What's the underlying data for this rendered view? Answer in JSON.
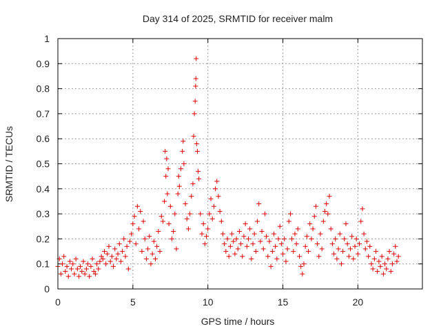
{
  "chart_data": {
    "type": "scatter",
    "title": "Day 314 of 2025, SRMTID for receiver malm",
    "xlabel": "GPS time / hours",
    "ylabel": "SRMTID / TECUs",
    "xlim": [
      0,
      24.3
    ],
    "ylim": [
      0,
      1
    ],
    "xticks": [
      0,
      5,
      10,
      15,
      20
    ],
    "xtick_labels": [
      "0",
      "5",
      "10",
      "15",
      "20"
    ],
    "yticks": [
      0,
      0.1,
      0.2,
      0.3,
      0.4,
      0.5,
      0.6,
      0.7,
      0.8,
      0.9,
      1
    ],
    "ytick_labels": [
      "0",
      "0.1",
      "0.2",
      "0.3",
      "0.4",
      "0.5",
      "0.6",
      "0.7",
      "0.8",
      "0.9",
      "1"
    ],
    "grid": true,
    "marker": "+",
    "series_color": "#e00000",
    "series": [
      {
        "name": "SRMTID",
        "points": [
          [
            0.0,
            0.09
          ],
          [
            0.1,
            0.12
          ],
          [
            0.2,
            0.06
          ],
          [
            0.3,
            0.1
          ],
          [
            0.4,
            0.13
          ],
          [
            0.5,
            0.07
          ],
          [
            0.6,
            0.09
          ],
          [
            0.7,
            0.05
          ],
          [
            0.8,
            0.11
          ],
          [
            0.9,
            0.08
          ],
          [
            1.0,
            0.1
          ],
          [
            1.1,
            0.06
          ],
          [
            1.2,
            0.12
          ],
          [
            1.3,
            0.08
          ],
          [
            1.4,
            0.05
          ],
          [
            1.5,
            0.09
          ],
          [
            1.6,
            0.07
          ],
          [
            1.7,
            0.11
          ],
          [
            1.8,
            0.06
          ],
          [
            1.9,
            0.08
          ],
          [
            2.0,
            0.1
          ],
          [
            2.1,
            0.05
          ],
          [
            2.2,
            0.09
          ],
          [
            2.3,
            0.12
          ],
          [
            2.4,
            0.07
          ],
          [
            2.5,
            0.06
          ],
          [
            2.6,
            0.1
          ],
          [
            2.7,
            0.08
          ],
          [
            2.8,
            0.11
          ],
          [
            2.9,
            0.13
          ],
          [
            3.0,
            0.12
          ],
          [
            3.1,
            0.15
          ],
          [
            3.2,
            0.1
          ],
          [
            3.3,
            0.14
          ],
          [
            3.4,
            0.17
          ],
          [
            3.5,
            0.11
          ],
          [
            3.6,
            0.13
          ],
          [
            3.7,
            0.09
          ],
          [
            3.8,
            0.16
          ],
          [
            3.9,
            0.12
          ],
          [
            4.0,
            0.14
          ],
          [
            4.1,
            0.18
          ],
          [
            4.2,
            0.11
          ],
          [
            4.3,
            0.15
          ],
          [
            4.4,
            0.2
          ],
          [
            4.5,
            0.13
          ],
          [
            4.6,
            0.17
          ],
          [
            4.7,
            0.08
          ],
          [
            4.8,
            0.19
          ],
          [
            4.9,
            0.22
          ],
          [
            5.0,
            0.26
          ],
          [
            5.1,
            0.29
          ],
          [
            5.2,
            0.18
          ],
          [
            5.3,
            0.33
          ],
          [
            5.4,
            0.24
          ],
          [
            5.5,
            0.31
          ],
          [
            5.6,
            0.15
          ],
          [
            5.7,
            0.27
          ],
          [
            5.8,
            0.2
          ],
          [
            5.9,
            0.12
          ],
          [
            6.0,
            0.16
          ],
          [
            6.1,
            0.21
          ],
          [
            6.2,
            0.1
          ],
          [
            6.3,
            0.14
          ],
          [
            6.4,
            0.19
          ],
          [
            6.5,
            0.12
          ],
          [
            6.6,
            0.17
          ],
          [
            6.7,
            0.23
          ],
          [
            6.8,
            0.15
          ],
          [
            6.9,
            0.29
          ],
          [
            7.0,
            0.27
          ],
          [
            7.1,
            0.35
          ],
          [
            7.15,
            0.55
          ],
          [
            7.2,
            0.45
          ],
          [
            7.25,
            0.52
          ],
          [
            7.3,
            0.38
          ],
          [
            7.35,
            0.48
          ],
          [
            7.4,
            0.26
          ],
          [
            7.5,
            0.33
          ],
          [
            7.6,
            0.2
          ],
          [
            7.7,
            0.23
          ],
          [
            7.8,
            0.3
          ],
          [
            7.9,
            0.16
          ],
          [
            8.0,
            0.38
          ],
          [
            8.05,
            0.45
          ],
          [
            8.1,
            0.41
          ],
          [
            8.2,
            0.48
          ],
          [
            8.3,
            0.55
          ],
          [
            8.35,
            0.59
          ],
          [
            8.4,
            0.5
          ],
          [
            8.5,
            0.34
          ],
          [
            8.6,
            0.28
          ],
          [
            8.7,
            0.24
          ],
          [
            8.8,
            0.3
          ],
          [
            8.9,
            0.37
          ],
          [
            9.0,
            0.42
          ],
          [
            9.05,
            0.61
          ],
          [
            9.1,
            0.7
          ],
          [
            9.15,
            0.75
          ],
          [
            9.18,
            0.81
          ],
          [
            9.2,
            0.84
          ],
          [
            9.22,
            0.92
          ],
          [
            9.25,
            0.58
          ],
          [
            9.3,
            0.55
          ],
          [
            9.35,
            0.47
          ],
          [
            9.4,
            0.44
          ],
          [
            9.5,
            0.3
          ],
          [
            9.6,
            0.22
          ],
          [
            9.7,
            0.26
          ],
          [
            9.8,
            0.18
          ],
          [
            9.9,
            0.21
          ],
          [
            10.0,
            0.24
          ],
          [
            10.1,
            0.3
          ],
          [
            10.2,
            0.36
          ],
          [
            10.3,
            0.28
          ],
          [
            10.4,
            0.33
          ],
          [
            10.5,
            0.4
          ],
          [
            10.6,
            0.43
          ],
          [
            10.7,
            0.37
          ],
          [
            10.8,
            0.31
          ],
          [
            10.9,
            0.27
          ],
          [
            11.0,
            0.22
          ],
          [
            11.1,
            0.18
          ],
          [
            11.2,
            0.15
          ],
          [
            11.3,
            0.2
          ],
          [
            11.4,
            0.13
          ],
          [
            11.5,
            0.17
          ],
          [
            11.6,
            0.22
          ],
          [
            11.7,
            0.19
          ],
          [
            11.8,
            0.14
          ],
          [
            11.9,
            0.2
          ],
          [
            12.0,
            0.16
          ],
          [
            12.1,
            0.23
          ],
          [
            12.2,
            0.18
          ],
          [
            12.3,
            0.13
          ],
          [
            12.4,
            0.21
          ],
          [
            12.5,
            0.26
          ],
          [
            12.6,
            0.17
          ],
          [
            12.7,
            0.2
          ],
          [
            12.8,
            0.24
          ],
          [
            12.9,
            0.12
          ],
          [
            13.0,
            0.18
          ],
          [
            13.1,
            0.22
          ],
          [
            13.2,
            0.15
          ],
          [
            13.3,
            0.27
          ],
          [
            13.4,
            0.34
          ],
          [
            13.5,
            0.19
          ],
          [
            13.6,
            0.23
          ],
          [
            13.7,
            0.16
          ],
          [
            13.8,
            0.3
          ],
          [
            13.9,
            0.21
          ],
          [
            14.0,
            0.13
          ],
          [
            14.1,
            0.19
          ],
          [
            14.2,
            0.09
          ],
          [
            14.3,
            0.15
          ],
          [
            14.4,
            0.22
          ],
          [
            14.5,
            0.17
          ],
          [
            14.6,
            0.12
          ],
          [
            14.7,
            0.2
          ],
          [
            14.8,
            0.25
          ],
          [
            14.9,
            0.18
          ],
          [
            15.0,
            0.14
          ],
          [
            15.1,
            0.2
          ],
          [
            15.2,
            0.11
          ],
          [
            15.3,
            0.16
          ],
          [
            15.4,
            0.27
          ],
          [
            15.5,
            0.3
          ],
          [
            15.6,
            0.2
          ],
          [
            15.7,
            0.15
          ],
          [
            15.8,
            0.22
          ],
          [
            15.9,
            0.18
          ],
          [
            16.0,
            0.24
          ],
          [
            16.1,
            0.13
          ],
          [
            16.2,
            0.09
          ],
          [
            16.3,
            0.06
          ],
          [
            16.4,
            0.1
          ],
          [
            16.5,
            0.17
          ],
          [
            16.6,
            0.21
          ],
          [
            16.7,
            0.15
          ],
          [
            16.8,
            0.26
          ],
          [
            16.9,
            0.2
          ],
          [
            17.0,
            0.24
          ],
          [
            17.1,
            0.29
          ],
          [
            17.2,
            0.33
          ],
          [
            17.3,
            0.18
          ],
          [
            17.4,
            0.13
          ],
          [
            17.5,
            0.22
          ],
          [
            17.6,
            0.16
          ],
          [
            17.7,
            0.27
          ],
          [
            17.8,
            0.31
          ],
          [
            17.9,
            0.34
          ],
          [
            18.0,
            0.3
          ],
          [
            18.1,
            0.37
          ],
          [
            18.2,
            0.24
          ],
          [
            18.3,
            0.18
          ],
          [
            18.4,
            0.14
          ],
          [
            18.5,
            0.2
          ],
          [
            18.6,
            0.12
          ],
          [
            18.7,
            0.16
          ],
          [
            18.8,
            0.22
          ],
          [
            18.9,
            0.1
          ],
          [
            19.0,
            0.15
          ],
          [
            19.1,
            0.2
          ],
          [
            19.2,
            0.26
          ],
          [
            19.3,
            0.18
          ],
          [
            19.4,
            0.13
          ],
          [
            19.5,
            0.16
          ],
          [
            19.6,
            0.21
          ],
          [
            19.7,
            0.12
          ],
          [
            19.8,
            0.17
          ],
          [
            19.9,
            0.2
          ],
          [
            20.0,
            0.14
          ],
          [
            20.1,
            0.18
          ],
          [
            20.2,
            0.27
          ],
          [
            20.3,
            0.32
          ],
          [
            20.4,
            0.22
          ],
          [
            20.5,
            0.16
          ],
          [
            20.6,
            0.19
          ],
          [
            20.7,
            0.13
          ],
          [
            20.8,
            0.17
          ],
          [
            20.9,
            0.1
          ],
          [
            21.0,
            0.08
          ],
          [
            21.1,
            0.12
          ],
          [
            21.2,
            0.15
          ],
          [
            21.3,
            0.07
          ],
          [
            21.4,
            0.11
          ],
          [
            21.5,
            0.09
          ],
          [
            21.6,
            0.13
          ],
          [
            21.7,
            0.06
          ],
          [
            21.8,
            0.1
          ],
          [
            21.9,
            0.08
          ],
          [
            22.0,
            0.12
          ],
          [
            22.1,
            0.15
          ],
          [
            22.2,
            0.07
          ],
          [
            22.3,
            0.1
          ],
          [
            22.4,
            0.14
          ],
          [
            22.5,
            0.17
          ],
          [
            22.6,
            0.11
          ],
          [
            22.7,
            0.13
          ]
        ]
      }
    ]
  }
}
